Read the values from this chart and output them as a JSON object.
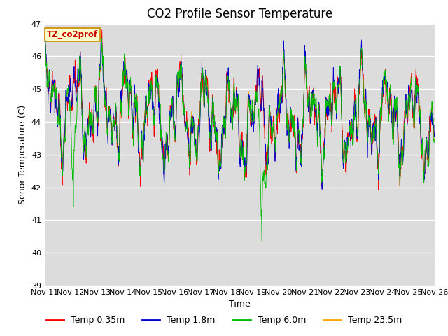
{
  "title": "CO2 Profile Sensor Temperature",
  "ylabel": "Senor Temperature (C)",
  "xlabel": "Time",
  "ylim": [
    39.0,
    47.0
  ],
  "yticks": [
    39.0,
    40.0,
    41.0,
    42.0,
    43.0,
    44.0,
    45.0,
    46.0,
    47.0
  ],
  "xtick_labels": [
    "Nov 11",
    "Nov 12",
    "Nov 13",
    "Nov 14",
    "Nov 15",
    "Nov 16",
    "Nov 17",
    "Nov 18",
    "Nov 19",
    "Nov 20",
    "Nov 21",
    "Nov 22",
    "Nov 23",
    "Nov 24",
    "Nov 25",
    "Nov 26"
  ],
  "n_days": 15,
  "n_points": 1800,
  "colors": {
    "red": "#FF0000",
    "blue": "#0000CC",
    "green": "#00BB00",
    "orange": "#FFA500"
  },
  "legend_labels": [
    "Temp 0.35m",
    "Temp 1.8m",
    "Temp 6.0m",
    "Temp 23.5m"
  ],
  "tag_label": "TZ_co2prof",
  "bg_color": "#DCDCDC",
  "line_width": 0.6,
  "title_fontsize": 12,
  "label_fontsize": 9,
  "tick_fontsize": 8
}
